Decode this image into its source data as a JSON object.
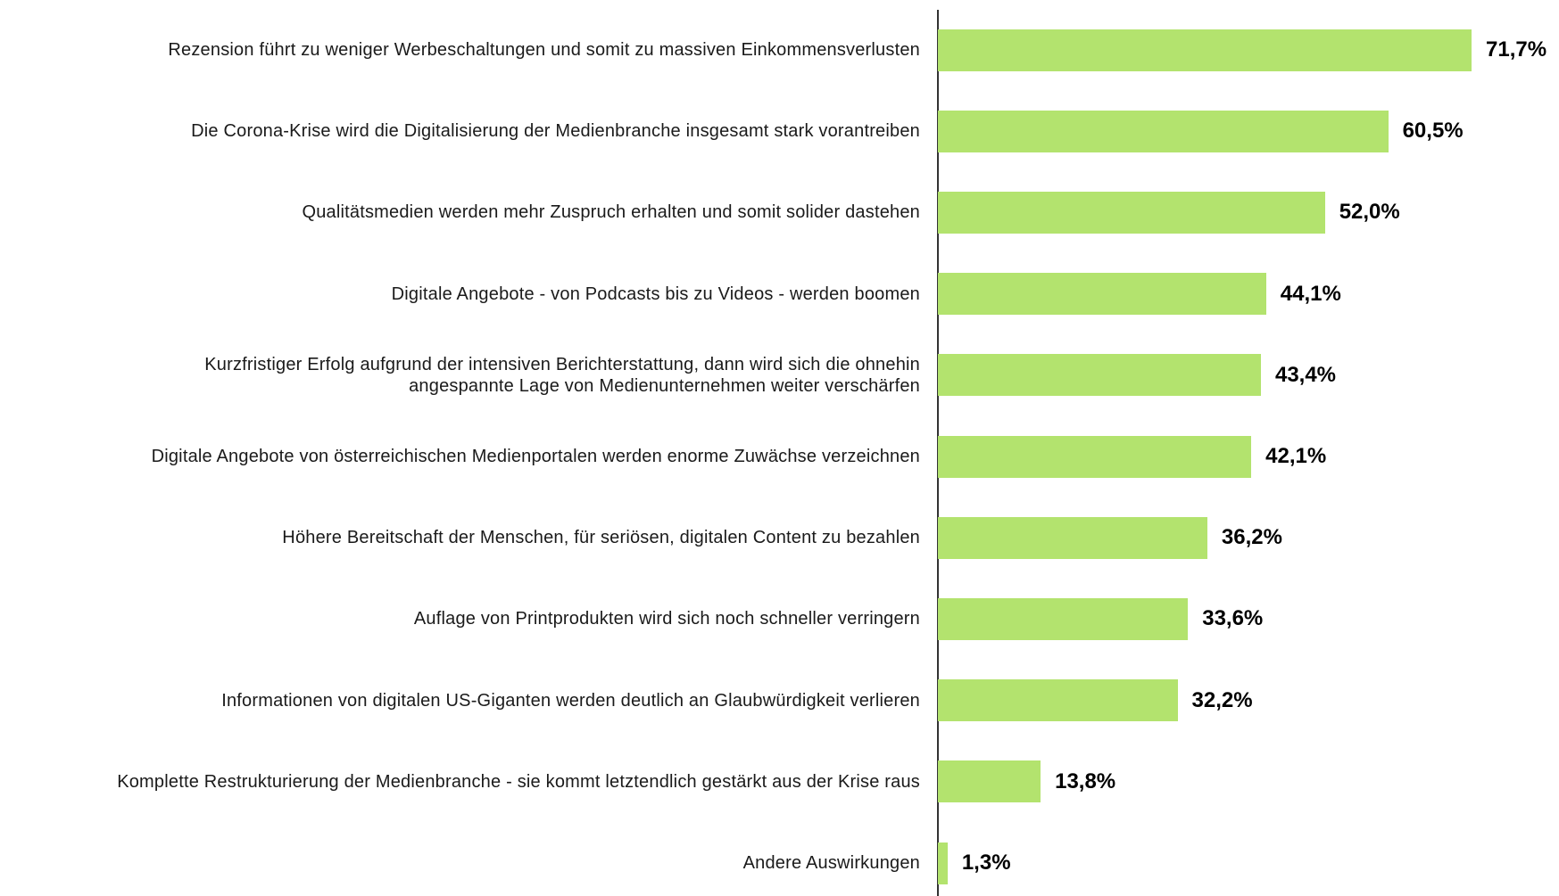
{
  "chart_data": {
    "type": "bar",
    "orientation": "horizontal",
    "color": "#b3e36e",
    "categories": [
      "Rezension führt zu weniger Werbeschaltungen und somit zu massiven Einkommensverlusten",
      "Die Corona-Krise wird die Digitalisierung der Medienbranche insgesamt stark vorantreiben",
      "Qualitätsmedien werden mehr Zuspruch erhalten und somit solider dastehen",
      "Digitale Angebote - von Podcasts bis zu Videos - werden boomen",
      "Kurzfristiger Erfolg aufgrund der intensiven Berichterstattung, dann wird sich die ohnehin\nangespannte Lage von Medienunternehmen weiter verschärfen",
      "Digitale Angebote von österreichischen Medienportalen werden enorme Zuwächse verzeichnen",
      "Höhere Bereitschaft der Menschen, für seriösen, digitalen Content zu bezahlen",
      "Auflage von Printprodukten wird sich noch schneller verringern",
      "Informationen von digitalen US-Giganten werden deutlich an Glaubwürdigkeit verlieren",
      "Komplette Restrukturierung der Medienbranche - sie kommt letztendlich gestärkt aus der Krise raus",
      "Andere Auswirkungen"
    ],
    "values": [
      71.7,
      60.5,
      52.0,
      44.1,
      43.4,
      42.1,
      36.2,
      33.6,
      32.2,
      13.8,
      1.3
    ],
    "value_labels": [
      "71,7%",
      "60,5%",
      "52,0%",
      "44,1%",
      "43,4%",
      "42,1%",
      "36,2%",
      "33,6%",
      "32,2%",
      "13,8%",
      "1,3%"
    ]
  }
}
